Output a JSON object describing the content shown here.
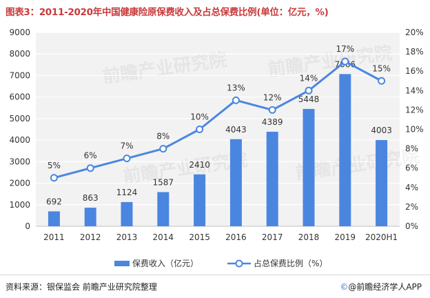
{
  "title": "图表3：2011-2020年中国健康险原保费收入及占总保费比例(单位：亿元，%)",
  "footer": {
    "source": "资料来源：银保监会   前瞻产业研究院整理",
    "brand_icon": "copyright-circle-icon",
    "brand": "@前瞻经济学人APP"
  },
  "watermark": "前瞻产业研究院",
  "chart_data": {
    "type": "bar",
    "categories": [
      "2011",
      "2012",
      "2013",
      "2014",
      "2015",
      "2016",
      "2017",
      "2018",
      "2019",
      "2020H1"
    ],
    "series": [
      {
        "name": "保费收入（亿元）",
        "type": "bar",
        "axis": "left",
        "color": "#4a86e0",
        "values": [
          692,
          863,
          1124,
          1587,
          2410,
          4043,
          4389,
          5448,
          7066,
          4003
        ],
        "labels": [
          "692",
          "863",
          "1124",
          "1587",
          "2410",
          "4043",
          "4389",
          "5448",
          "7066",
          "4003"
        ]
      },
      {
        "name": "占总保费比例（%）",
        "type": "line",
        "axis": "right",
        "color": "#4a86e0",
        "values": [
          5,
          6,
          7,
          8,
          10,
          13,
          12,
          14,
          17,
          15
        ],
        "labels": [
          "5%",
          "6%",
          "7%",
          "8%",
          "10%",
          "13%",
          "12%",
          "14%",
          "17%",
          "15%"
        ]
      }
    ],
    "y_left": {
      "ylim": [
        0,
        9000
      ],
      "ticks": [
        "0",
        "1000",
        "2000",
        "3000",
        "4000",
        "5000",
        "6000",
        "7000",
        "8000",
        "9000"
      ]
    },
    "y_right": {
      "ylim": [
        0,
        20
      ],
      "ticks": [
        "0%",
        "2%",
        "4%",
        "6%",
        "8%",
        "10%",
        "12%",
        "14%",
        "16%",
        "18%",
        "20%"
      ]
    },
    "grid": true,
    "legend_position": "bottom"
  }
}
